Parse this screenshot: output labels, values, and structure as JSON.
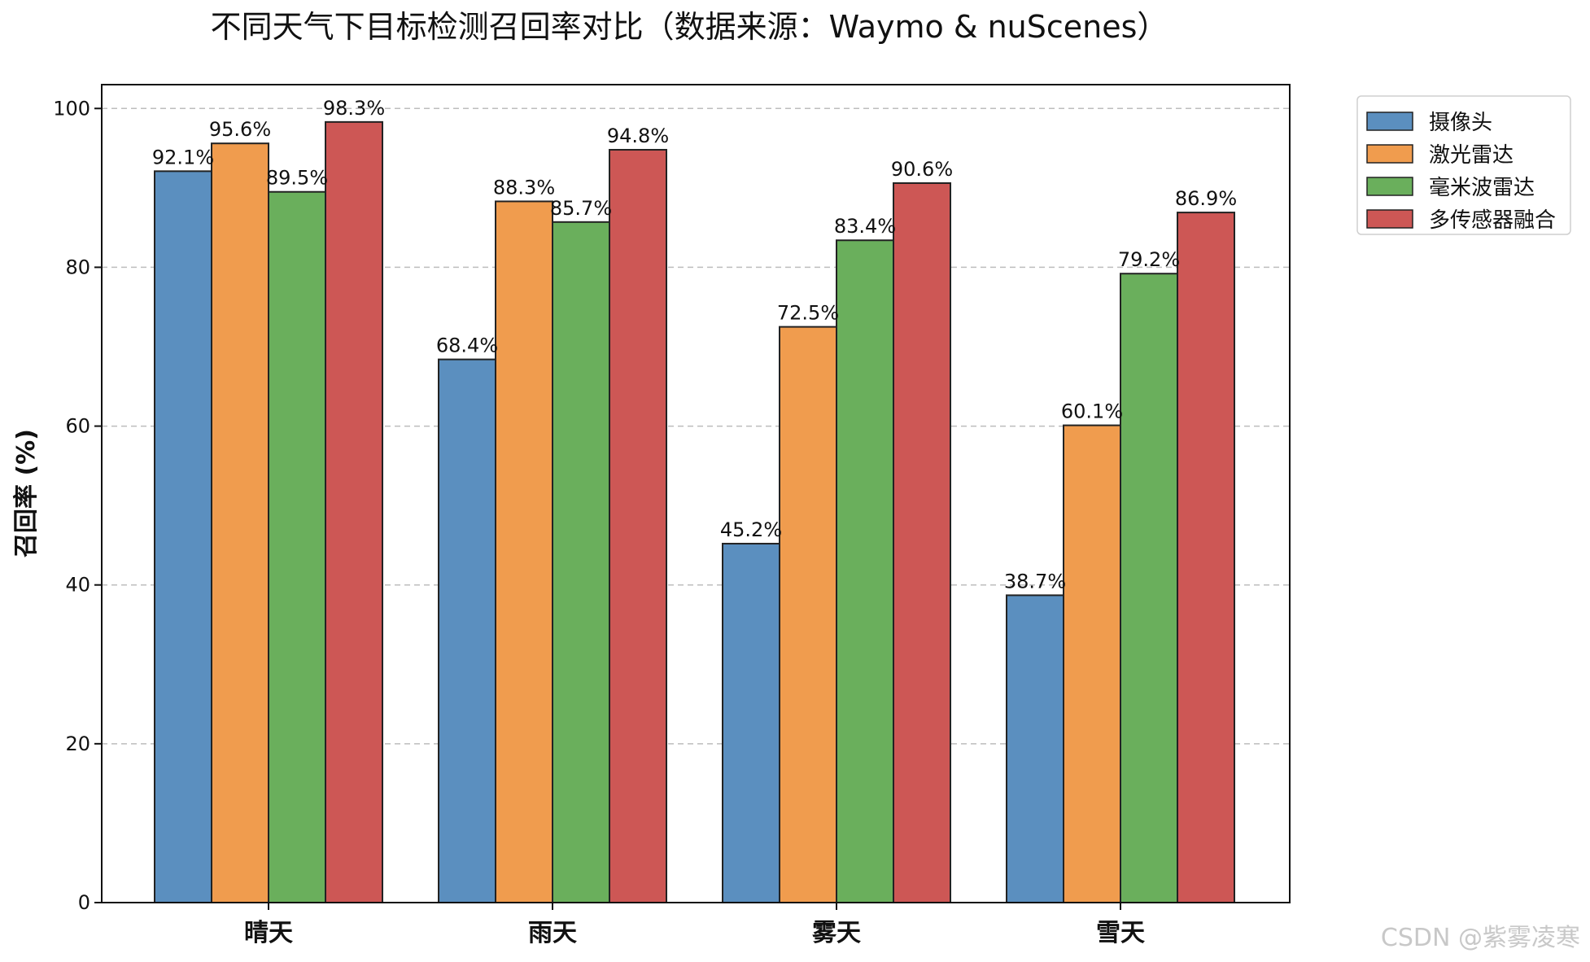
{
  "chart_data": {
    "type": "bar",
    "title": "不同天气下目标检测召回率对比（数据来源：Waymo & nuScenes）",
    "xlabel": "",
    "ylabel": "召回率 (%)",
    "categories": [
      "晴天",
      "雨天",
      "雾天",
      "雪天"
    ],
    "ylim": [
      0,
      103
    ],
    "yticks": [
      0,
      20,
      40,
      60,
      80,
      100
    ],
    "grid": "y-dashed",
    "legend_position": "outside-top-right",
    "value_suffix": "%",
    "series": [
      {
        "name": "摄像头",
        "color": "#5b8fbf",
        "values": [
          92.1,
          68.4,
          45.2,
          38.7
        ]
      },
      {
        "name": "激光雷达",
        "color": "#f09c4e",
        "values": [
          95.6,
          88.3,
          72.5,
          60.1
        ]
      },
      {
        "name": "毫米波雷达",
        "color": "#6aaf5c",
        "values": [
          89.5,
          85.7,
          83.4,
          79.2
        ]
      },
      {
        "name": "多传感器融合",
        "color": "#cd5755",
        "values": [
          98.3,
          94.8,
          90.6,
          86.9
        ]
      }
    ]
  },
  "watermark": "CSDN @紫雾凌寒"
}
